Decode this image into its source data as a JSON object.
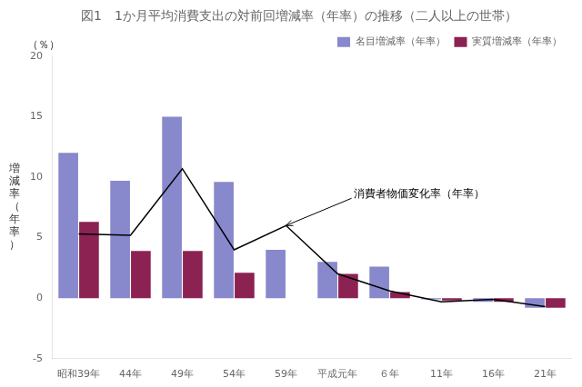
{
  "chart_data": {
    "type": "bar",
    "title": "図1　1か月平均消費支出の対前回増減率（年率）の推移（二人以上の世帯）",
    "ylabel": "増\n減\n率\n（\n年\n率\n）",
    "yunit": "（％）",
    "categories": [
      "昭和39年",
      "44年",
      "49年",
      "54年",
      "59年",
      "平成元年",
      "６年",
      "11年",
      "16年",
      "21年"
    ],
    "series": [
      {
        "name": "名目増減率（年率）",
        "type": "bar",
        "color": "#8888cc",
        "values": [
          12.0,
          9.7,
          15.0,
          9.6,
          4.0,
          3.0,
          2.6,
          -0.1,
          -0.3,
          -0.8
        ]
      },
      {
        "name": "実質増減率（年率）",
        "type": "bar",
        "color": "#8b2252",
        "values": [
          6.3,
          3.9,
          3.9,
          2.1,
          null,
          2.0,
          0.5,
          -0.2,
          -0.3,
          -0.8
        ]
      },
      {
        "type": "line",
        "color": "#000000",
        "values": [
          5.3,
          5.2,
          10.7,
          4.0,
          6.0,
          2.0,
          0.6,
          -0.3,
          -0.1,
          -0.7
        ]
      }
    ],
    "annotations": [
      {
        "text": "消費者物価変化率（年率）",
        "x": "59年",
        "y": 6.0
      }
    ],
    "ylim": [
      -5,
      20
    ],
    "yticks": [
      -5,
      0,
      5,
      10,
      15,
      20
    ],
    "grid": false,
    "legend": "upper right"
  }
}
